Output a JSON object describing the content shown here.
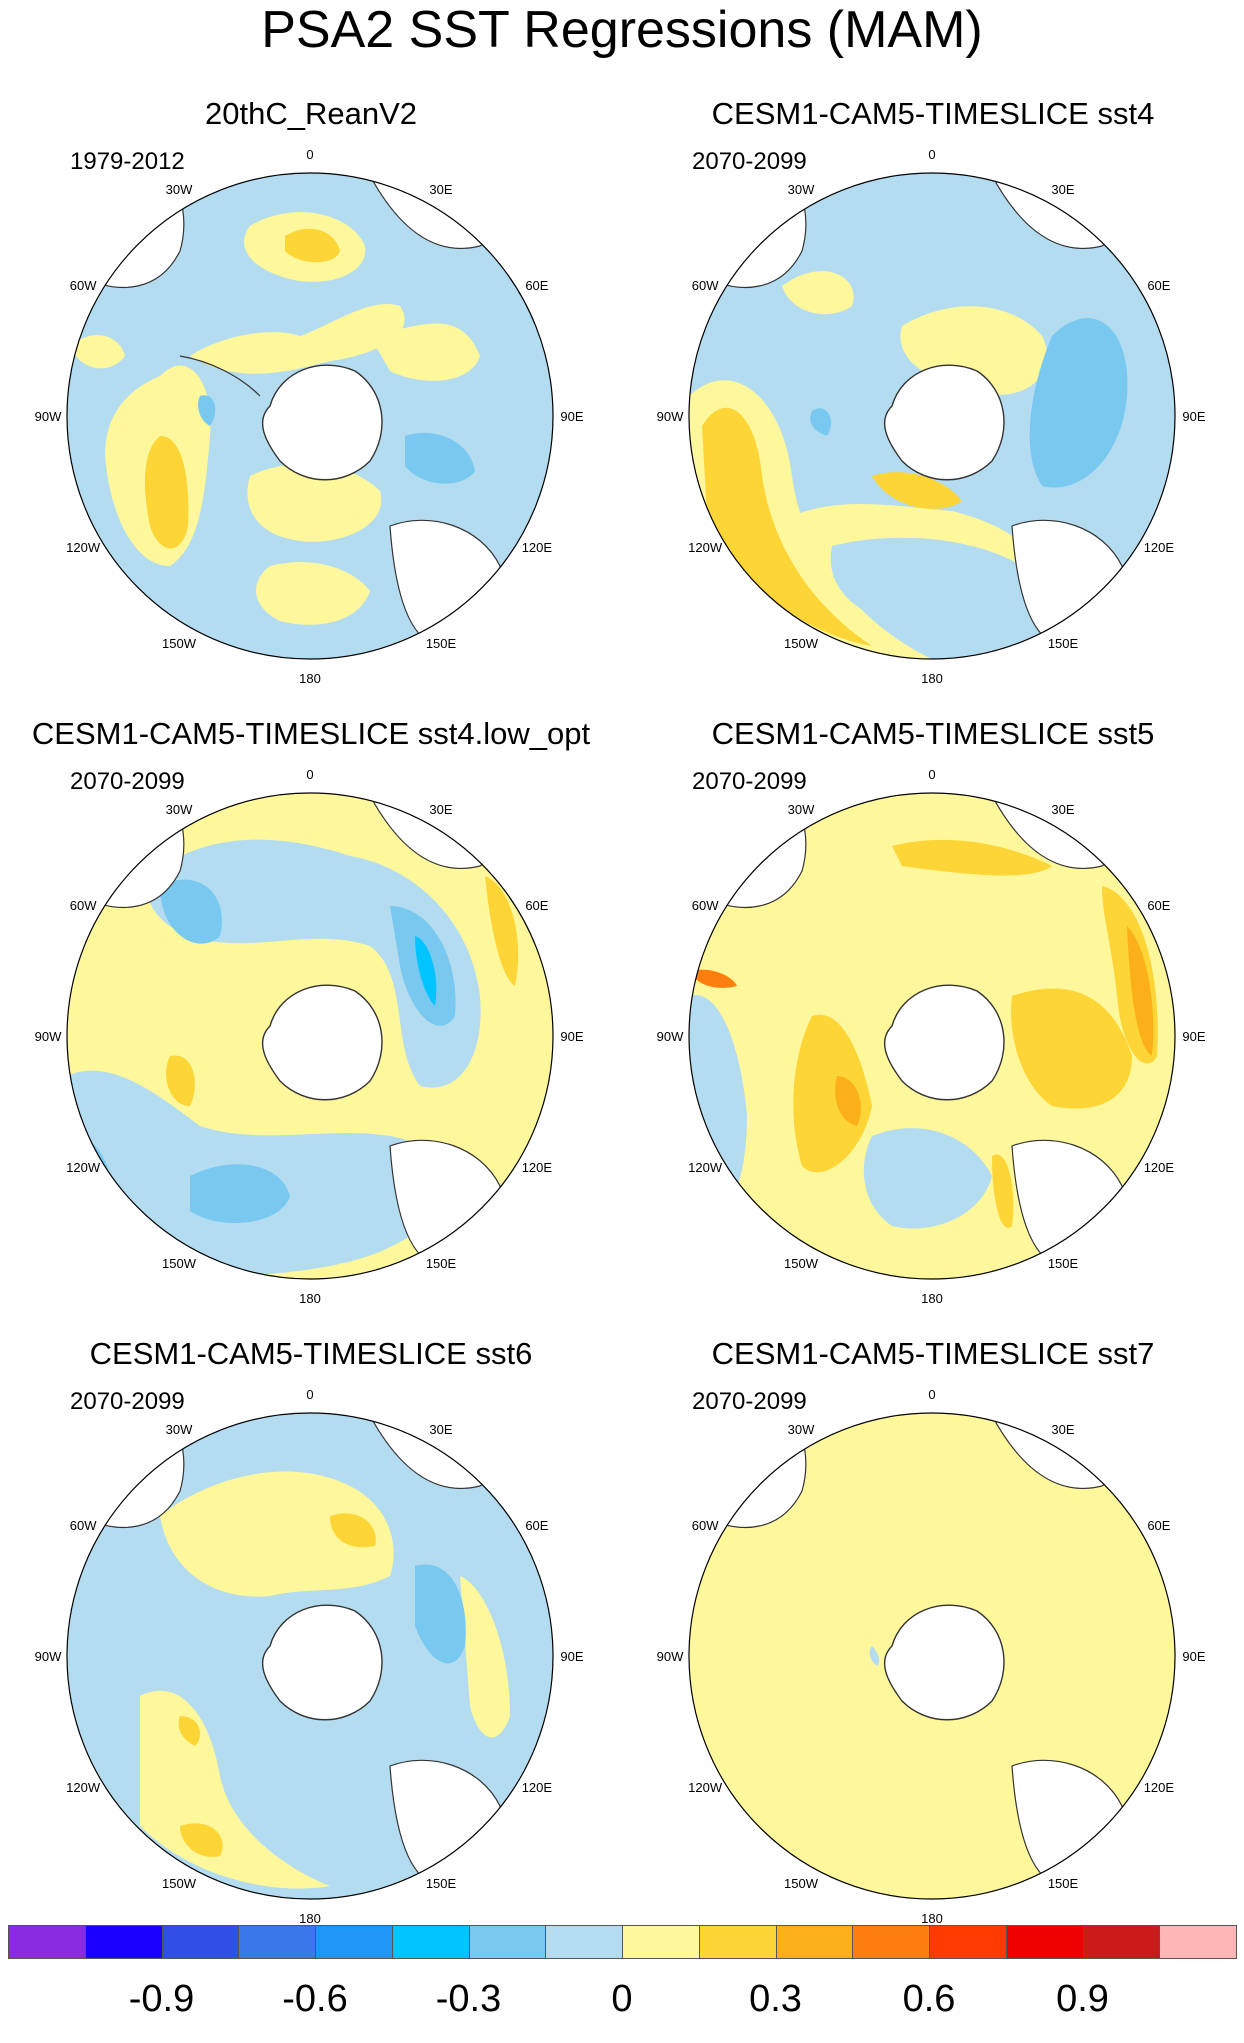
{
  "title": "PSA2 SST Regressions (MAM)",
  "panels": [
    {
      "title": "20thC_ReanV2",
      "period": "1979-2012"
    },
    {
      "title": "CESM1-CAM5-TIMESLICE sst4",
      "period": "2070-2099"
    },
    {
      "title": "CESM1-CAM5-TIMESLICE sst4.low_opt",
      "period": "2070-2099"
    },
    {
      "title": "CESM1-CAM5-TIMESLICE sst5",
      "period": "2070-2099"
    },
    {
      "title": "CESM1-CAM5-TIMESLICE sst6",
      "period": "2070-2099"
    },
    {
      "title": "CESM1-CAM5-TIMESLICE sst7",
      "period": "2070-2099"
    }
  ],
  "lon_labels": [
    "0",
    "30E",
    "60E",
    "90E",
    "120E",
    "150E",
    "180",
    "150W",
    "120W",
    "90W",
    "60W",
    "30W"
  ],
  "colorbar": {
    "colors": [
      "#8a2be2",
      "#1a00ff",
      "#2f4fe6",
      "#3a78ea",
      "#1e96f8",
      "#00c4ff",
      "#78c8f0",
      "#b4dcf0",
      "#fff79b",
      "#fdd536",
      "#fbb01a",
      "#ff7f0e",
      "#ff3a00",
      "#ee0000",
      "#cc1a1a",
      "#ffb6b6"
    ],
    "labels": [
      "-0.9",
      "-0.6",
      "-0.3",
      "0",
      "0.3",
      "0.6",
      "0.9"
    ],
    "label_boundaries": [
      2,
      4,
      6,
      8,
      10,
      12,
      14
    ]
  },
  "palette": {
    "light_blue": "#b4dcf0",
    "mid_blue": "#78c8f0",
    "cyan": "#00c4ff",
    "light_yellow": "#fff79b",
    "gold": "#fdd536",
    "orange": "#fbb01a",
    "red_orange": "#ff7f0e",
    "land": "#ffffff"
  }
}
